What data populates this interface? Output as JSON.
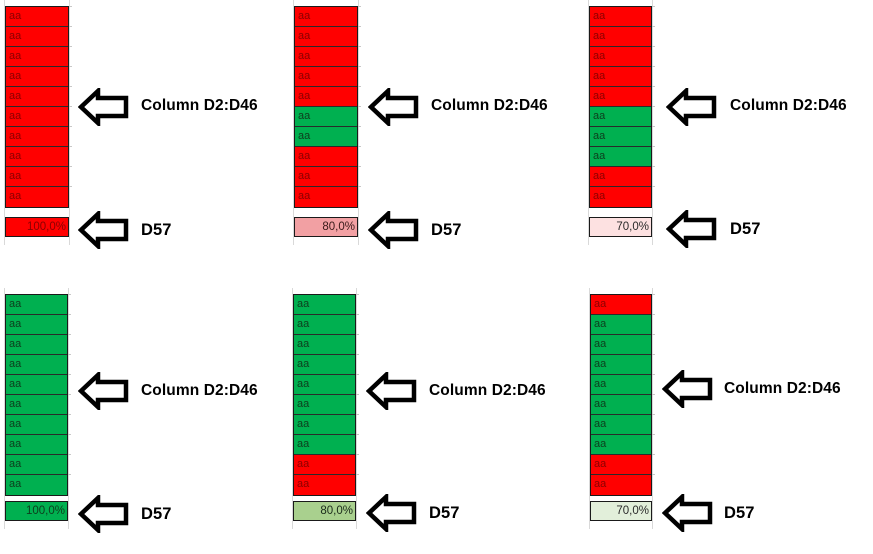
{
  "labels": {
    "column_range": "Column D2:D46",
    "summary_cell": "D57"
  },
  "colors": {
    "red": "#ff0000",
    "green": "#00b050",
    "d57_red_100": "#ff0000",
    "d57_red_80": "#f2a0a3",
    "d57_red_70": "#fde1e1",
    "d57_green_100": "#00b050",
    "d57_green_80": "#a9d08e",
    "d57_green_70": "#e2efda"
  },
  "panels": [
    {
      "id": "top-1",
      "cells": [
        {
          "text": "aa",
          "state": "red"
        },
        {
          "text": "aa",
          "state": "red"
        },
        {
          "text": "aa",
          "state": "red"
        },
        {
          "text": "aa",
          "state": "red"
        },
        {
          "text": "aa",
          "state": "red"
        },
        {
          "text": "aa",
          "state": "red"
        },
        {
          "text": "aa",
          "state": "red"
        },
        {
          "text": "aa",
          "state": "red"
        },
        {
          "text": "aa",
          "state": "red"
        },
        {
          "text": "aa",
          "state": "red"
        }
      ],
      "d57": {
        "value": "100,0%",
        "fill": "#ff0000",
        "text_color": "#8a0000"
      }
    },
    {
      "id": "top-2",
      "cells": [
        {
          "text": "aa",
          "state": "red"
        },
        {
          "text": "aa",
          "state": "red"
        },
        {
          "text": "aa",
          "state": "red"
        },
        {
          "text": "aa",
          "state": "red"
        },
        {
          "text": "aa",
          "state": "red"
        },
        {
          "text": "aa",
          "state": "green"
        },
        {
          "text": "aa",
          "state": "green"
        },
        {
          "text": "aa",
          "state": "red"
        },
        {
          "text": "aa",
          "state": "red"
        },
        {
          "text": "aa",
          "state": "red"
        }
      ],
      "d57": {
        "value": "80,0%",
        "fill": "#f2a0a3",
        "text_color": "#3a1a1a"
      }
    },
    {
      "id": "top-3",
      "cells": [
        {
          "text": "aa",
          "state": "red"
        },
        {
          "text": "aa",
          "state": "red"
        },
        {
          "text": "aa",
          "state": "red"
        },
        {
          "text": "aa",
          "state": "red"
        },
        {
          "text": "aa",
          "state": "red"
        },
        {
          "text": "aa",
          "state": "green"
        },
        {
          "text": "aa",
          "state": "green"
        },
        {
          "text": "aa",
          "state": "green"
        },
        {
          "text": "aa",
          "state": "red"
        },
        {
          "text": "aa",
          "state": "red"
        }
      ],
      "d57": {
        "value": "70,0%",
        "fill": "#fde1e1",
        "text_color": "#2a2a2a"
      }
    },
    {
      "id": "bottom-1",
      "cells": [
        {
          "text": "aa",
          "state": "green"
        },
        {
          "text": "aa",
          "state": "green"
        },
        {
          "text": "aa",
          "state": "green"
        },
        {
          "text": "aa",
          "state": "green"
        },
        {
          "text": "aa",
          "state": "green"
        },
        {
          "text": "aa",
          "state": "green"
        },
        {
          "text": "aa",
          "state": "green"
        },
        {
          "text": "aa",
          "state": "green"
        },
        {
          "text": "aa",
          "state": "green"
        },
        {
          "text": "aa",
          "state": "green"
        }
      ],
      "d57": {
        "value": "100,0%",
        "fill": "#00b050",
        "text_color": "#0d3d1d"
      }
    },
    {
      "id": "bottom-2",
      "cells": [
        {
          "text": "aa",
          "state": "green"
        },
        {
          "text": "aa",
          "state": "green"
        },
        {
          "text": "aa",
          "state": "green"
        },
        {
          "text": "aa",
          "state": "green"
        },
        {
          "text": "aa",
          "state": "green"
        },
        {
          "text": "aa",
          "state": "green"
        },
        {
          "text": "aa",
          "state": "green"
        },
        {
          "text": "aa",
          "state": "green"
        },
        {
          "text": "aa",
          "state": "red"
        },
        {
          "text": "aa",
          "state": "red"
        }
      ],
      "d57": {
        "value": "80,0%",
        "fill": "#a9d08e",
        "text_color": "#1a2a1a"
      }
    },
    {
      "id": "bottom-3",
      "cells": [
        {
          "text": "aa",
          "state": "red"
        },
        {
          "text": "aa",
          "state": "green"
        },
        {
          "text": "aa",
          "state": "green"
        },
        {
          "text": "aa",
          "state": "green"
        },
        {
          "text": "aa",
          "state": "green"
        },
        {
          "text": "aa",
          "state": "green"
        },
        {
          "text": "aa",
          "state": "green"
        },
        {
          "text": "aa",
          "state": "green"
        },
        {
          "text": "aa",
          "state": "red"
        },
        {
          "text": "aa",
          "state": "red"
        }
      ],
      "d57": {
        "value": "70,0%",
        "fill": "#e2efda",
        "text_color": "#2a2a2a"
      }
    }
  ]
}
